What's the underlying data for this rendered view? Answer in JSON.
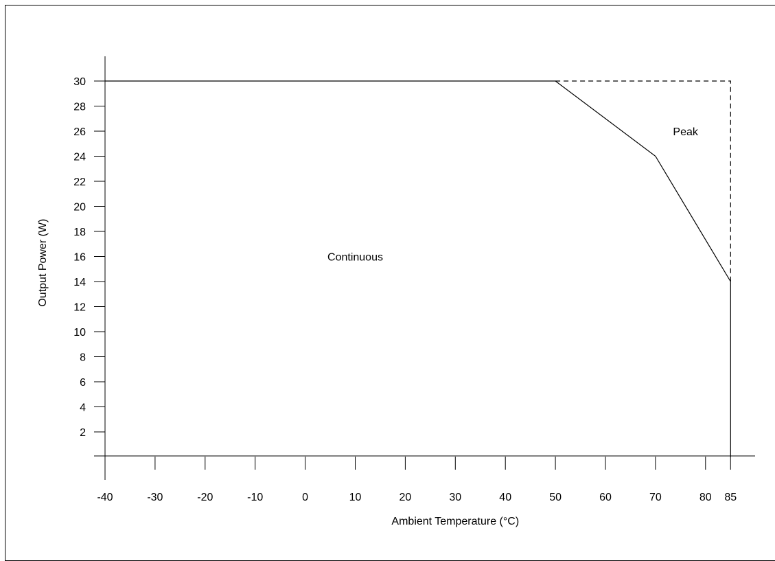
{
  "chart_data": {
    "type": "line",
    "title": "",
    "xlabel": "Ambient Temperature (°C)",
    "ylabel": "Output Power (W)",
    "xlim": [
      -40,
      90
    ],
    "ylim": [
      0,
      30
    ],
    "x_ticks": [
      -40,
      -30,
      -20,
      -10,
      0,
      10,
      20,
      30,
      40,
      50,
      60,
      70,
      80,
      85
    ],
    "y_ticks": [
      2,
      4,
      6,
      8,
      10,
      12,
      14,
      16,
      18,
      20,
      22,
      24,
      26,
      28,
      30
    ],
    "grid": false,
    "series": [
      {
        "name": "Continuous",
        "line_style": "solid",
        "x": [
          -40,
          50,
          70,
          85,
          85
        ],
        "y": [
          30,
          30,
          24,
          14,
          0
        ]
      },
      {
        "name": "Peak",
        "line_style": "dashed",
        "x": [
          50,
          85,
          85
        ],
        "y": [
          30,
          30,
          14
        ]
      }
    ],
    "annotations": [
      {
        "text": "Continuous",
        "x": 10,
        "y": 16
      },
      {
        "text": "Peak",
        "x": 76,
        "y": 26
      }
    ],
    "colors": {
      "line": "#000000",
      "background": "#ffffff"
    }
  }
}
